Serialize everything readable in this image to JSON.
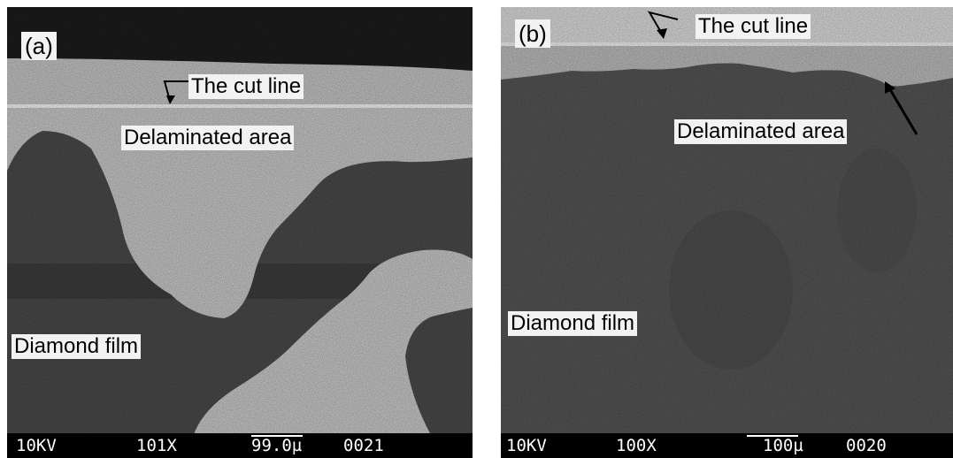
{
  "panel_a": {
    "label": "(a)",
    "cut_line": "The cut line",
    "delaminated": "Delaminated area",
    "diamond": "Diamond film",
    "footer": {
      "kv": "10KV",
      "mag": "101X",
      "scale": "99.0µ",
      "id": "0021"
    }
  },
  "panel_b": {
    "label": "(b)",
    "cut_line": "The cut line",
    "delaminated": "Delaminated area",
    "diamond": "Diamond film",
    "footer": {
      "kv": "10KV",
      "mag": "100X",
      "scale": "100µ",
      "id": "0020"
    }
  }
}
